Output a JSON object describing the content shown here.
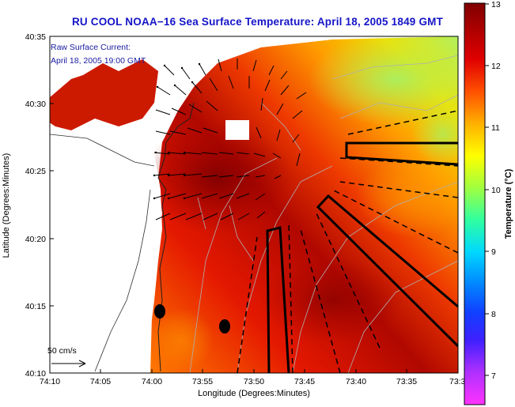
{
  "title": "RU COOL  NOAA−16  Sea Surface Temperature:  April 18, 2005 1849 GMT",
  "annotation": {
    "line1": "Raw Surface Current:",
    "line2": "April 18, 2005 19:00 GMT"
  },
  "scale_label": "50 cm/s",
  "x_axis": {
    "label": "Longitude (Degrees:Minutes)",
    "ticks": [
      "74:10",
      "74:05",
      "74:00",
      "73:55",
      "73:50",
      "73:45",
      "73:40",
      "73:35",
      "73:3"
    ]
  },
  "y_axis": {
    "label": "Latitude (Degrees:Minutes)",
    "ticks": [
      "40:35",
      "40:30",
      "40:25",
      "40:20",
      "40:15",
      "40:10"
    ]
  },
  "colorbar": {
    "label": "Temperature (°C)",
    "ticks": [
      "13",
      "12",
      "11",
      "10",
      "9",
      "8",
      "7"
    ],
    "min": 6.5,
    "max": 13,
    "colors": [
      "#ff33ff",
      "#9933ff",
      "#2020ff",
      "#0080ff",
      "#00d8ff",
      "#30ff90",
      "#a8ff40",
      "#ffff00",
      "#ffb000",
      "#ff5000",
      "#e00000",
      "#b00000",
      "#800000"
    ]
  },
  "map": {
    "water_gradient": [
      "#ff7000",
      "#e01000",
      "#a00000",
      "#e83000",
      "#ff9800",
      "#f0e800",
      "#b8f060"
    ],
    "land_color": "#ffffff",
    "markers": [
      "buoy-1",
      "buoy-2"
    ]
  }
}
